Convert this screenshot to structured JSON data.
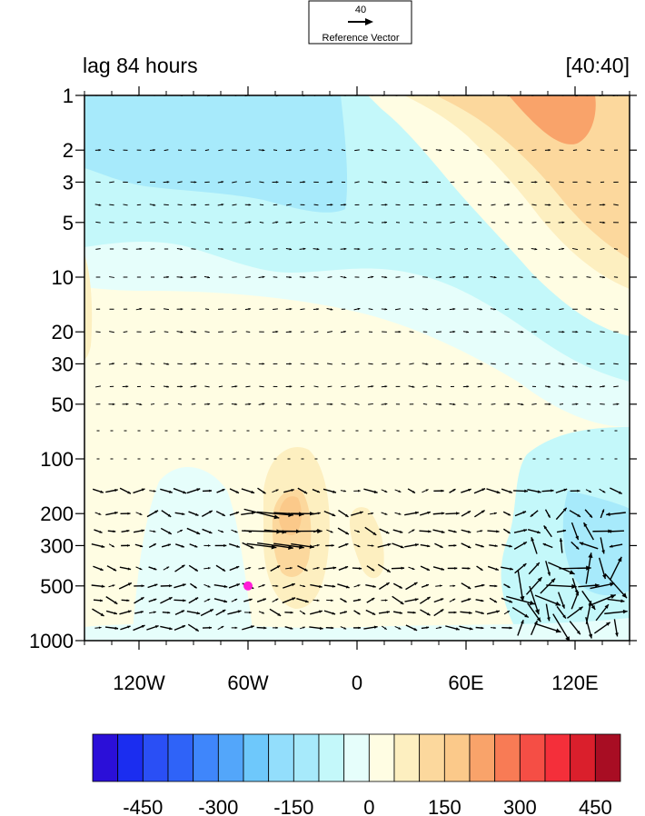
{
  "chart_data": {
    "type": "heatmap",
    "subtype": "filled contour with vector overlay",
    "title_left": "lag 84 hours",
    "title_right": "[40:40]",
    "reference_vector": {
      "magnitude": "40",
      "label": "Reference Vector"
    },
    "x_axis": {
      "range": [
        -150,
        150
      ],
      "ticks": [
        -120,
        -60,
        0,
        60,
        120
      ],
      "tick_labels": [
        "120W",
        "60W",
        "0",
        "60E",
        "120E"
      ]
    },
    "y_axis": {
      "scale": "log",
      "inverted": true,
      "range": [
        1,
        1000
      ],
      "ticks": [
        1,
        2,
        3,
        5,
        10,
        20,
        30,
        50,
        100,
        200,
        300,
        500,
        1000
      ],
      "tick_labels": [
        "1",
        "2",
        "3",
        "5",
        "10",
        "20",
        "30",
        "50",
        "100",
        "200",
        "300",
        "500",
        "1000"
      ]
    },
    "colorbar": {
      "levels": [
        -500,
        -450,
        -400,
        -350,
        -300,
        -250,
        -200,
        -150,
        -100,
        -50,
        0,
        50,
        100,
        150,
        200,
        250,
        300,
        350,
        400,
        450,
        500
      ],
      "tick_values": [
        -450,
        -300,
        -150,
        0,
        150,
        300,
        450
      ],
      "tick_labels": [
        "-450",
        "-300",
        "-150",
        "0",
        "150",
        "300",
        "450"
      ],
      "colors": [
        "#2b0fd8",
        "#1b2df0",
        "#2a4ff5",
        "#2f63f8",
        "#3f86fb",
        "#53a6fa",
        "#6ec8fb",
        "#93defc",
        "#a7eafb",
        "#c4f8fa",
        "#e6fefb",
        "#fffde3",
        "#fdefc0",
        "#fcd89d",
        "#fbc98a",
        "#f9a36a",
        "#f87b55",
        "#f54e45",
        "#f42f3a",
        "#da1f2c",
        "#a80d23"
      ]
    },
    "field_regions": [
      {
        "name": "upper-west-negative",
        "value": -150,
        "lon_range": [
          -150,
          -30
        ],
        "p_range": [
          1,
          4
        ]
      },
      {
        "name": "upper-east-positive",
        "value": 200,
        "lon_range": [
          80,
          150
        ],
        "p_range": [
          1,
          5
        ]
      },
      {
        "name": "midlevel-negative-band",
        "value": -75,
        "lon_range": [
          -150,
          150
        ],
        "p_range": [
          5,
          100
        ]
      },
      {
        "name": "low-positive-core",
        "value": 250,
        "lon_range": [
          -45,
          -30
        ],
        "p_range": [
          180,
          300
        ]
      },
      {
        "name": "lower-east-negative",
        "value": -150,
        "lon_range": [
          90,
          150
        ],
        "p_range": [
          150,
          500
        ]
      }
    ],
    "marker": {
      "lon": -60,
      "p": 500,
      "color": "#ff1dd8"
    },
    "vector_columns_lon_step": 7.5,
    "vector_levels": [
      1,
      2,
      3,
      4,
      5,
      7,
      10,
      15,
      20,
      30,
      40,
      50,
      70,
      100,
      150,
      200,
      250,
      300,
      400,
      500,
      600,
      700,
      850
    ]
  }
}
